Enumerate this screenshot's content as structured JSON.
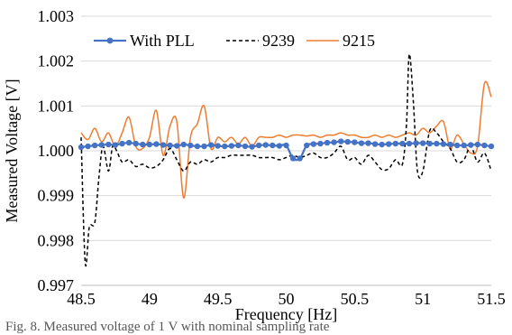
{
  "chart_data": {
    "type": "line",
    "xlabel": "Frequency [Hz]",
    "ylabel": "Measured Voltage [V]",
    "xlim": [
      48.5,
      51.5
    ],
    "ylim": [
      0.997,
      1.003
    ],
    "x_ticks": [
      "48.5",
      "49",
      "49.5",
      "50",
      "50.5",
      "51",
      "51.5"
    ],
    "y_ticks": [
      "0.997",
      "0.998",
      "0.999",
      "1.000",
      "1.001",
      "1.002",
      "1.003"
    ],
    "grid": "horizontal",
    "legend_position": "top-left",
    "series": [
      {
        "name": "With PLL",
        "color": "#4472c4",
        "style": "solid-markers",
        "x": [
          48.5,
          48.55,
          48.6,
          48.65,
          48.7,
          48.75,
          48.8,
          48.85,
          48.9,
          48.95,
          49.0,
          49.05,
          49.1,
          49.15,
          49.2,
          49.25,
          49.3,
          49.35,
          49.4,
          49.45,
          49.5,
          49.55,
          49.6,
          49.65,
          49.7,
          49.75,
          49.8,
          49.85,
          49.9,
          49.95,
          50.0,
          50.05,
          50.1,
          50.15,
          50.2,
          50.25,
          50.3,
          50.35,
          50.4,
          50.45,
          50.5,
          50.55,
          50.6,
          50.65,
          50.7,
          50.75,
          50.8,
          50.85,
          50.9,
          50.95,
          51.0,
          51.05,
          51.1,
          51.15,
          51.2,
          51.25,
          51.3,
          51.35,
          51.4,
          51.45,
          51.5
        ],
        "y": [
          1.00008,
          1.0001,
          1.00012,
          1.00013,
          1.00014,
          1.00013,
          1.00016,
          1.00018,
          1.00016,
          1.00014,
          1.00014,
          1.00015,
          1.00013,
          1.00012,
          1.00011,
          1.00014,
          1.00012,
          1.0001,
          1.0001,
          1.00013,
          1.00011,
          1.0001,
          1.00011,
          1.00012,
          1.0001,
          1.00009,
          1.00012,
          1.00013,
          1.00012,
          1.00011,
          1.00012,
          0.99983,
          0.99983,
          1.00012,
          1.00015,
          1.00016,
          1.00018,
          1.00019,
          1.00021,
          1.0002,
          1.00019,
          1.00017,
          1.00017,
          1.00015,
          1.00014,
          1.00015,
          1.00016,
          1.00016,
          1.00016,
          1.00017,
          1.00017,
          1.00016,
          1.00016,
          1.00015,
          1.00014,
          1.00012,
          1.00012,
          1.00013,
          1.00014,
          1.00012,
          1.0001
        ]
      },
      {
        "name": "9239",
        "color": "#000000",
        "style": "dashed",
        "x": [
          48.5,
          48.53,
          48.56,
          48.6,
          48.63,
          48.66,
          48.7,
          48.73,
          48.76,
          48.8,
          48.85,
          48.9,
          48.95,
          49.0,
          49.05,
          49.1,
          49.15,
          49.2,
          49.25,
          49.3,
          49.35,
          49.4,
          49.45,
          49.5,
          49.55,
          49.6,
          49.65,
          49.7,
          49.75,
          49.8,
          49.85,
          49.9,
          49.95,
          50.0,
          50.05,
          50.1,
          50.15,
          50.2,
          50.25,
          50.3,
          50.35,
          50.4,
          50.45,
          50.5,
          50.55,
          50.6,
          50.65,
          50.7,
          50.75,
          50.8,
          50.85,
          50.88,
          50.9,
          50.93,
          50.96,
          51.0,
          51.05,
          51.1,
          51.15,
          51.2,
          51.25,
          51.3,
          51.35,
          51.4,
          51.45,
          51.5
        ],
        "y": [
          1.0003,
          0.9975,
          0.9983,
          0.9984,
          0.9994,
          1.0001,
          0.99955,
          1.0001,
          1.0,
          0.99975,
          0.9998,
          0.99965,
          0.9997,
          0.99962,
          0.99965,
          0.9998,
          1.00005,
          0.9998,
          0.99955,
          0.99975,
          0.9997,
          0.9998,
          0.99975,
          0.99985,
          0.99985,
          0.9999,
          0.9999,
          0.9999,
          0.9999,
          0.99985,
          0.99985,
          0.99985,
          0.9998,
          0.99985,
          0.9999,
          0.99985,
          0.9999,
          0.99995,
          0.99985,
          0.99985,
          0.99995,
          1.0001,
          0.9998,
          0.99985,
          0.9997,
          0.9999,
          0.99975,
          0.99958,
          0.9996,
          0.9998,
          0.9997,
          1.0006,
          1.00215,
          1.0011,
          0.99955,
          0.99955,
          1.00045,
          1.0004,
          1.0002,
          1.00005,
          0.99975,
          0.9998,
          1.0001,
          0.99975,
          0.99995,
          0.99955
        ]
      },
      {
        "name": "9215",
        "color": "#ed7d31",
        "style": "solid",
        "x": [
          48.5,
          48.55,
          48.6,
          48.65,
          48.7,
          48.75,
          48.8,
          48.85,
          48.9,
          48.95,
          49.0,
          49.05,
          49.1,
          49.15,
          49.2,
          49.25,
          49.3,
          49.35,
          49.4,
          49.45,
          49.5,
          49.55,
          49.6,
          49.65,
          49.7,
          49.75,
          49.8,
          49.85,
          49.9,
          49.95,
          50.0,
          50.05,
          50.1,
          50.15,
          50.2,
          50.25,
          50.3,
          50.35,
          50.4,
          50.45,
          50.5,
          50.55,
          50.6,
          50.65,
          50.7,
          50.75,
          50.8,
          50.85,
          50.9,
          50.95,
          51.0,
          51.05,
          51.1,
          51.15,
          51.2,
          51.25,
          51.3,
          51.35,
          51.4,
          51.45,
          51.5
        ],
        "y": [
          1.0004,
          1.00025,
          1.0005,
          1.0002,
          1.0004,
          1.0001,
          1.0004,
          1.00075,
          1.0001,
          1.00005,
          1.0003,
          1.0009,
          0.9999,
          1.00055,
          1.00065,
          0.99895,
          1.0003,
          1.0006,
          1.001,
          1.00005,
          1.0003,
          1.0002,
          1.0003,
          1.00015,
          1.0003,
          1.0001,
          1.0003,
          1.0003,
          1.0003,
          1.00035,
          1.0003,
          1.00035,
          1.00035,
          1.00033,
          1.00035,
          1.0003,
          1.00035,
          1.00035,
          1.0004,
          1.00035,
          1.00035,
          1.0003,
          1.0003,
          1.00035,
          1.0003,
          1.00035,
          1.0003,
          1.00035,
          1.0004,
          1.00035,
          1.0005,
          1.0004,
          1.00055,
          1.00065,
          1.00005,
          1.00035,
          1.00015,
          0.99995,
          1.0001,
          1.0015,
          1.0012
        ]
      }
    ]
  },
  "caption": "Fig. 8.  Measured voltage of 1 V with nominal sampling rate"
}
